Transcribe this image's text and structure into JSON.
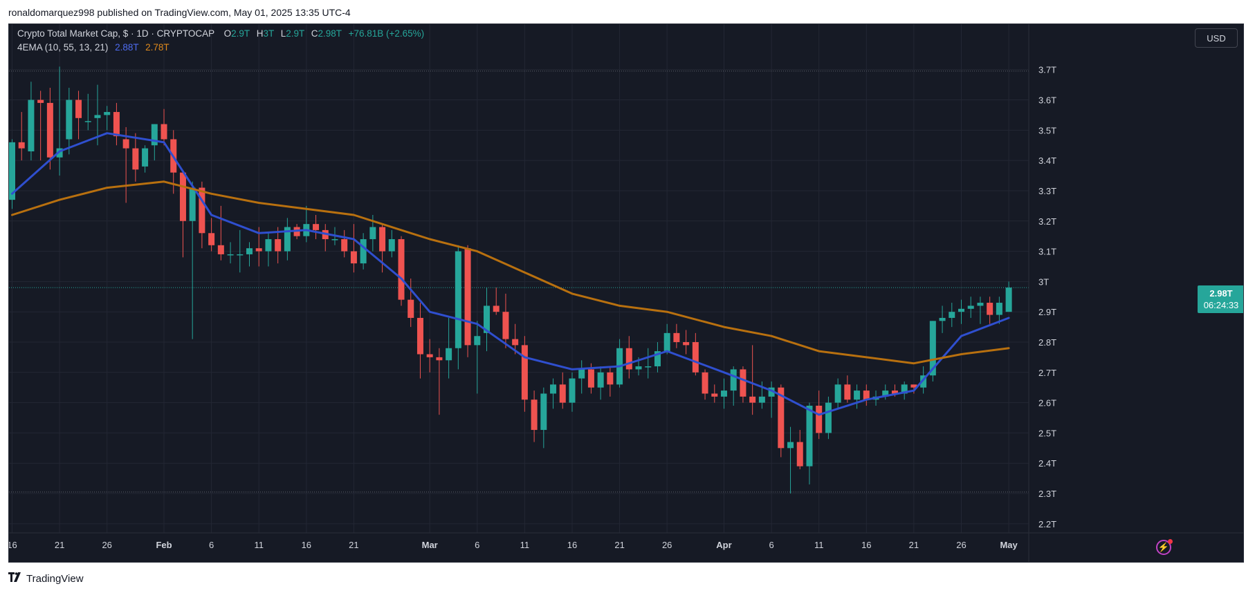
{
  "header": {
    "publisher_line": "ronaldomarquez998 published on TradingView.com, May 01, 2025 13:35 UTC-4"
  },
  "legend": {
    "symbol": "Crypto Total Market Cap, $ · 1D · CRYPTOCAP",
    "o_label": "O",
    "o_value": "2.9T",
    "h_label": "H",
    "h_value": "3T",
    "l_label": "L",
    "l_value": "2.9T",
    "c_label": "C",
    "c_value": "2.98T",
    "change": "+76.81B (+2.65%)",
    "indicator": "4EMA (10, 55, 13, 21)",
    "ema_fast": "2.88T",
    "ema_slow": "2.78T"
  },
  "price_axis": {
    "currency": "USD"
  },
  "price_tag": {
    "price": "2.98T",
    "countdown": "06:24:33"
  },
  "footer": {
    "brand": "TradingView"
  },
  "icons": {
    "alert": "lightning-icon",
    "logo": "tradingview-logo-icon"
  },
  "colors": {
    "background": "#161a25",
    "up": "#26a69a",
    "down": "#ef5350",
    "ema_fast": "#2f4fcf",
    "ema_slow": "#b8700f",
    "text": "#d1d4dc"
  },
  "chart_data": {
    "type": "candlestick",
    "title": "Crypto Total Market Cap, $ · 1D · CRYPTOCAP",
    "ylabel": "",
    "ylim": [
      2.17,
      3.85
    ],
    "y_ticks": [
      "3.7T",
      "3.6T",
      "3.5T",
      "3.4T",
      "3.3T",
      "3.2T",
      "3.1T",
      "3T",
      "2.9T",
      "2.8T",
      "2.7T",
      "2.6T",
      "2.5T",
      "2.4T",
      "2.3T",
      "2.2T"
    ],
    "y_tick_values": [
      3.7,
      3.6,
      3.5,
      3.4,
      3.3,
      3.2,
      3.1,
      3.0,
      2.9,
      2.8,
      2.7,
      2.6,
      2.5,
      2.4,
      2.3,
      2.2
    ],
    "x_ticks": [
      {
        "label": "16",
        "date": "2025-01-16"
      },
      {
        "label": "21",
        "date": "2025-01-21"
      },
      {
        "label": "26",
        "date": "2025-01-26"
      },
      {
        "label": "Feb",
        "date": "2025-02-01",
        "bold": true
      },
      {
        "label": "6",
        "date": "2025-02-06"
      },
      {
        "label": "11",
        "date": "2025-02-11"
      },
      {
        "label": "16",
        "date": "2025-02-16"
      },
      {
        "label": "21",
        "date": "2025-02-21"
      },
      {
        "label": "Mar",
        "date": "2025-03-01",
        "bold": true
      },
      {
        "label": "6",
        "date": "2025-03-06"
      },
      {
        "label": "11",
        "date": "2025-03-11"
      },
      {
        "label": "16",
        "date": "2025-03-16"
      },
      {
        "label": "21",
        "date": "2025-03-21"
      },
      {
        "label": "26",
        "date": "2025-03-26"
      },
      {
        "label": "Apr",
        "date": "2025-04-01",
        "bold": true
      },
      {
        "label": "6",
        "date": "2025-04-06"
      },
      {
        "label": "11",
        "date": "2025-04-11"
      },
      {
        "label": "16",
        "date": "2025-04-16"
      },
      {
        "label": "21",
        "date": "2025-04-21"
      },
      {
        "label": "26",
        "date": "2025-04-26"
      },
      {
        "label": "May",
        "date": "2025-05-01",
        "bold": true
      }
    ],
    "x_start": "2025-01-16",
    "dotted_levels": [
      3.695,
      2.305
    ],
    "current_price": 2.98,
    "candles": [
      {
        "date": "2025-01-16",
        "o": 3.27,
        "h": 3.47,
        "l": 3.24,
        "c": 3.46
      },
      {
        "date": "2025-01-17",
        "o": 3.46,
        "h": 3.56,
        "l": 3.4,
        "c": 3.44
      },
      {
        "date": "2025-01-18",
        "o": 3.43,
        "h": 3.66,
        "l": 3.4,
        "c": 3.6
      },
      {
        "date": "2025-01-19",
        "o": 3.6,
        "h": 3.63,
        "l": 3.4,
        "c": 3.59
      },
      {
        "date": "2025-01-20",
        "o": 3.59,
        "h": 3.64,
        "l": 3.37,
        "c": 3.41
      },
      {
        "date": "2025-01-21",
        "o": 3.41,
        "h": 3.71,
        "l": 3.35,
        "c": 3.44
      },
      {
        "date": "2025-01-22",
        "o": 3.47,
        "h": 3.64,
        "l": 3.42,
        "c": 3.6
      },
      {
        "date": "2025-01-23",
        "o": 3.6,
        "h": 3.63,
        "l": 3.47,
        "c": 3.54
      },
      {
        "date": "2025-01-24",
        "o": 3.53,
        "h": 3.62,
        "l": 3.5,
        "c": 3.53
      },
      {
        "date": "2025-01-25",
        "o": 3.54,
        "h": 3.65,
        "l": 3.45,
        "c": 3.55
      },
      {
        "date": "2025-01-26",
        "o": 3.55,
        "h": 3.58,
        "l": 3.5,
        "c": 3.56
      },
      {
        "date": "2025-01-27",
        "o": 3.56,
        "h": 3.59,
        "l": 3.45,
        "c": 3.48
      },
      {
        "date": "2025-01-28",
        "o": 3.47,
        "h": 3.51,
        "l": 3.26,
        "c": 3.44
      },
      {
        "date": "2025-01-29",
        "o": 3.44,
        "h": 3.49,
        "l": 3.33,
        "c": 3.37
      },
      {
        "date": "2025-01-30",
        "o": 3.38,
        "h": 3.45,
        "l": 3.36,
        "c": 3.44
      },
      {
        "date": "2025-01-31",
        "o": 3.45,
        "h": 3.52,
        "l": 3.4,
        "c": 3.52
      },
      {
        "date": "2025-02-01",
        "o": 3.52,
        "h": 3.57,
        "l": 3.45,
        "c": 3.47
      },
      {
        "date": "2025-02-02",
        "o": 3.47,
        "h": 3.5,
        "l": 3.29,
        "c": 3.36
      },
      {
        "date": "2025-02-03",
        "o": 3.36,
        "h": 3.36,
        "l": 3.08,
        "c": 3.2
      },
      {
        "date": "2025-02-04",
        "o": 3.2,
        "h": 3.33,
        "l": 2.81,
        "c": 3.31
      },
      {
        "date": "2025-02-05",
        "o": 3.31,
        "h": 3.33,
        "l": 3.11,
        "c": 3.16
      },
      {
        "date": "2025-02-06",
        "o": 3.16,
        "h": 3.21,
        "l": 3.1,
        "c": 3.12
      },
      {
        "date": "2025-02-07",
        "o": 3.12,
        "h": 3.25,
        "l": 3.07,
        "c": 3.09
      },
      {
        "date": "2025-02-08",
        "o": 3.09,
        "h": 3.13,
        "l": 3.06,
        "c": 3.09
      },
      {
        "date": "2025-02-09",
        "o": 3.09,
        "h": 3.17,
        "l": 3.03,
        "c": 3.09
      },
      {
        "date": "2025-02-10",
        "o": 3.09,
        "h": 3.13,
        "l": 3.05,
        "c": 3.11
      },
      {
        "date": "2025-02-11",
        "o": 3.11,
        "h": 3.18,
        "l": 3.05,
        "c": 3.1
      },
      {
        "date": "2025-02-12",
        "o": 3.1,
        "h": 3.16,
        "l": 3.05,
        "c": 3.14
      },
      {
        "date": "2025-02-13",
        "o": 3.14,
        "h": 3.18,
        "l": 3.06,
        "c": 3.1
      },
      {
        "date": "2025-02-14",
        "o": 3.1,
        "h": 3.21,
        "l": 3.07,
        "c": 3.18
      },
      {
        "date": "2025-02-15",
        "o": 3.18,
        "h": 3.19,
        "l": 3.14,
        "c": 3.15
      },
      {
        "date": "2025-02-16",
        "o": 3.15,
        "h": 3.25,
        "l": 3.13,
        "c": 3.19
      },
      {
        "date": "2025-02-17",
        "o": 3.19,
        "h": 3.22,
        "l": 3.14,
        "c": 3.17
      },
      {
        "date": "2025-02-18",
        "o": 3.17,
        "h": 3.19,
        "l": 3.1,
        "c": 3.14
      },
      {
        "date": "2025-02-19",
        "o": 3.14,
        "h": 3.18,
        "l": 3.12,
        "c": 3.14
      },
      {
        "date": "2025-02-20",
        "o": 3.14,
        "h": 3.17,
        "l": 3.08,
        "c": 3.1
      },
      {
        "date": "2025-02-21",
        "o": 3.1,
        "h": 3.19,
        "l": 3.03,
        "c": 3.06
      },
      {
        "date": "2025-02-22",
        "o": 3.06,
        "h": 3.16,
        "l": 3.04,
        "c": 3.14
      },
      {
        "date": "2025-02-23",
        "o": 3.14,
        "h": 3.22,
        "l": 3.1,
        "c": 3.18
      },
      {
        "date": "2025-02-24",
        "o": 3.18,
        "h": 3.19,
        "l": 3.03,
        "c": 3.1
      },
      {
        "date": "2025-02-25",
        "o": 3.1,
        "h": 3.17,
        "l": 3.08,
        "c": 3.14
      },
      {
        "date": "2025-02-26",
        "o": 3.14,
        "h": 3.15,
        "l": 2.92,
        "c": 2.94
      },
      {
        "date": "2025-02-27",
        "o": 2.94,
        "h": 3.01,
        "l": 2.85,
        "c": 2.88
      },
      {
        "date": "2025-02-28",
        "o": 2.88,
        "h": 2.93,
        "l": 2.68,
        "c": 2.76
      },
      {
        "date": "2025-03-01",
        "o": 2.76,
        "h": 2.81,
        "l": 2.7,
        "c": 2.75
      },
      {
        "date": "2025-03-02",
        "o": 2.75,
        "h": 2.78,
        "l": 2.56,
        "c": 2.74
      },
      {
        "date": "2025-03-03",
        "o": 2.74,
        "h": 2.88,
        "l": 2.68,
        "c": 2.78
      },
      {
        "date": "2025-03-04",
        "o": 2.78,
        "h": 3.12,
        "l": 2.71,
        "c": 3.1
      },
      {
        "date": "2025-03-05",
        "o": 3.11,
        "h": 3.12,
        "l": 2.75,
        "c": 2.79
      },
      {
        "date": "2025-03-06",
        "o": 2.79,
        "h": 2.87,
        "l": 2.63,
        "c": 2.82
      },
      {
        "date": "2025-03-07",
        "o": 2.83,
        "h": 2.98,
        "l": 2.77,
        "c": 2.92
      },
      {
        "date": "2025-03-08",
        "o": 2.92,
        "h": 2.98,
        "l": 2.89,
        "c": 2.9
      },
      {
        "date": "2025-03-09",
        "o": 2.9,
        "h": 2.96,
        "l": 2.78,
        "c": 2.81
      },
      {
        "date": "2025-03-10",
        "o": 2.81,
        "h": 2.86,
        "l": 2.76,
        "c": 2.79
      },
      {
        "date": "2025-03-11",
        "o": 2.79,
        "h": 2.82,
        "l": 2.57,
        "c": 2.61
      },
      {
        "date": "2025-03-12",
        "o": 2.61,
        "h": 2.64,
        "l": 2.47,
        "c": 2.51
      },
      {
        "date": "2025-03-13",
        "o": 2.51,
        "h": 2.65,
        "l": 2.45,
        "c": 2.63
      },
      {
        "date": "2025-03-14",
        "o": 2.63,
        "h": 2.68,
        "l": 2.58,
        "c": 2.66
      },
      {
        "date": "2025-03-15",
        "o": 2.66,
        "h": 2.7,
        "l": 2.58,
        "c": 2.6
      },
      {
        "date": "2025-03-16",
        "o": 2.6,
        "h": 2.7,
        "l": 2.57,
        "c": 2.68
      },
      {
        "date": "2025-03-17",
        "o": 2.68,
        "h": 2.74,
        "l": 2.63,
        "c": 2.71
      },
      {
        "date": "2025-03-18",
        "o": 2.71,
        "h": 2.73,
        "l": 2.63,
        "c": 2.65
      },
      {
        "date": "2025-03-19",
        "o": 2.65,
        "h": 2.72,
        "l": 2.61,
        "c": 2.7
      },
      {
        "date": "2025-03-20",
        "o": 2.7,
        "h": 2.72,
        "l": 2.62,
        "c": 2.66
      },
      {
        "date": "2025-03-21",
        "o": 2.66,
        "h": 2.81,
        "l": 2.65,
        "c": 2.78
      },
      {
        "date": "2025-03-22",
        "o": 2.78,
        "h": 2.82,
        "l": 2.68,
        "c": 2.71
      },
      {
        "date": "2025-03-23",
        "o": 2.71,
        "h": 2.75,
        "l": 2.69,
        "c": 2.72
      },
      {
        "date": "2025-03-24",
        "o": 2.72,
        "h": 2.78,
        "l": 2.68,
        "c": 2.72
      },
      {
        "date": "2025-03-25",
        "o": 2.72,
        "h": 2.8,
        "l": 2.7,
        "c": 2.77
      },
      {
        "date": "2025-03-26",
        "o": 2.77,
        "h": 2.86,
        "l": 2.76,
        "c": 2.83
      },
      {
        "date": "2025-03-27",
        "o": 2.83,
        "h": 2.86,
        "l": 2.78,
        "c": 2.8
      },
      {
        "date": "2025-03-28",
        "o": 2.8,
        "h": 2.84,
        "l": 2.76,
        "c": 2.79
      },
      {
        "date": "2025-03-29",
        "o": 2.8,
        "h": 2.83,
        "l": 2.69,
        "c": 2.7
      },
      {
        "date": "2025-03-30",
        "o": 2.7,
        "h": 2.71,
        "l": 2.61,
        "c": 2.63
      },
      {
        "date": "2025-03-31",
        "o": 2.63,
        "h": 2.66,
        "l": 2.6,
        "c": 2.62
      },
      {
        "date": "2025-04-01",
        "o": 2.62,
        "h": 2.68,
        "l": 2.58,
        "c": 2.64
      },
      {
        "date": "2025-04-02",
        "o": 2.64,
        "h": 2.72,
        "l": 2.59,
        "c": 2.71
      },
      {
        "date": "2025-04-03",
        "o": 2.71,
        "h": 2.72,
        "l": 2.6,
        "c": 2.62
      },
      {
        "date": "2025-04-04",
        "o": 2.62,
        "h": 2.79,
        "l": 2.56,
        "c": 2.6
      },
      {
        "date": "2025-04-05",
        "o": 2.6,
        "h": 2.67,
        "l": 2.58,
        "c": 2.62
      },
      {
        "date": "2025-04-06",
        "o": 2.62,
        "h": 2.67,
        "l": 2.55,
        "c": 2.65
      },
      {
        "date": "2025-04-07",
        "o": 2.65,
        "h": 2.66,
        "l": 2.42,
        "c": 2.45
      },
      {
        "date": "2025-04-08",
        "o": 2.45,
        "h": 2.52,
        "l": 2.3,
        "c": 2.47
      },
      {
        "date": "2025-04-09",
        "o": 2.47,
        "h": 2.51,
        "l": 2.38,
        "c": 2.39
      },
      {
        "date": "2025-04-10",
        "o": 2.39,
        "h": 2.6,
        "l": 2.33,
        "c": 2.59
      },
      {
        "date": "2025-04-11",
        "o": 2.59,
        "h": 2.64,
        "l": 2.48,
        "c": 2.5
      },
      {
        "date": "2025-04-12",
        "o": 2.5,
        "h": 2.62,
        "l": 2.48,
        "c": 2.6
      },
      {
        "date": "2025-04-13",
        "o": 2.6,
        "h": 2.68,
        "l": 2.58,
        "c": 2.66
      },
      {
        "date": "2025-04-14",
        "o": 2.66,
        "h": 2.69,
        "l": 2.6,
        "c": 2.61
      },
      {
        "date": "2025-04-15",
        "o": 2.61,
        "h": 2.66,
        "l": 2.58,
        "c": 2.64
      },
      {
        "date": "2025-04-16",
        "o": 2.64,
        "h": 2.66,
        "l": 2.59,
        "c": 2.61
      },
      {
        "date": "2025-04-17",
        "o": 2.61,
        "h": 2.64,
        "l": 2.59,
        "c": 2.62
      },
      {
        "date": "2025-04-18",
        "o": 2.62,
        "h": 2.66,
        "l": 2.61,
        "c": 2.64
      },
      {
        "date": "2025-04-19",
        "o": 2.64,
        "h": 2.66,
        "l": 2.62,
        "c": 2.63
      },
      {
        "date": "2025-04-20",
        "o": 2.63,
        "h": 2.67,
        "l": 2.61,
        "c": 2.66
      },
      {
        "date": "2025-04-21",
        "o": 2.66,
        "h": 2.66,
        "l": 2.63,
        "c": 2.65
      },
      {
        "date": "2025-04-22",
        "o": 2.65,
        "h": 2.72,
        "l": 2.63,
        "c": 2.69
      },
      {
        "date": "2025-04-23",
        "o": 2.69,
        "h": 2.87,
        "l": 2.67,
        "c": 2.87
      },
      {
        "date": "2025-04-24",
        "o": 2.87,
        "h": 2.92,
        "l": 2.83,
        "c": 2.88
      },
      {
        "date": "2025-04-25",
        "o": 2.88,
        "h": 2.93,
        "l": 2.85,
        "c": 2.9
      },
      {
        "date": "2025-04-26",
        "o": 2.9,
        "h": 2.94,
        "l": 2.86,
        "c": 2.91
      },
      {
        "date": "2025-04-27",
        "o": 2.91,
        "h": 2.95,
        "l": 2.88,
        "c": 2.92
      },
      {
        "date": "2025-04-28",
        "o": 2.92,
        "h": 2.95,
        "l": 2.86,
        "c": 2.93
      },
      {
        "date": "2025-04-29",
        "o": 2.93,
        "h": 2.95,
        "l": 2.86,
        "c": 2.89
      },
      {
        "date": "2025-04-30",
        "o": 2.89,
        "h": 2.95,
        "l": 2.86,
        "c": 2.93
      },
      {
        "date": "2025-05-01",
        "o": 2.9,
        "h": 3.0,
        "l": 2.9,
        "c": 2.98
      }
    ],
    "series": [
      {
        "name": "EMA 10",
        "color": "#2f4fcf",
        "dates": [
          "2025-01-16",
          "2025-01-21",
          "2025-01-26",
          "2025-02-01",
          "2025-02-06",
          "2025-02-11",
          "2025-02-16",
          "2025-02-21",
          "2025-02-26",
          "2025-03-01",
          "2025-03-06",
          "2025-03-11",
          "2025-03-16",
          "2025-03-21",
          "2025-03-26",
          "2025-04-01",
          "2025-04-06",
          "2025-04-11",
          "2025-04-16",
          "2025-04-21",
          "2025-04-26",
          "2025-05-01"
        ],
        "values": [
          3.29,
          3.43,
          3.49,
          3.46,
          3.22,
          3.16,
          3.17,
          3.14,
          3.01,
          2.9,
          2.86,
          2.75,
          2.71,
          2.72,
          2.77,
          2.7,
          2.64,
          2.56,
          2.61,
          2.64,
          2.82,
          2.88
        ]
      },
      {
        "name": "EMA 55",
        "color": "#b8700f",
        "dates": [
          "2025-01-16",
          "2025-01-21",
          "2025-01-26",
          "2025-02-01",
          "2025-02-06",
          "2025-02-11",
          "2025-02-16",
          "2025-02-21",
          "2025-02-26",
          "2025-03-01",
          "2025-03-06",
          "2025-03-11",
          "2025-03-16",
          "2025-03-21",
          "2025-03-26",
          "2025-04-01",
          "2025-04-06",
          "2025-04-11",
          "2025-04-16",
          "2025-04-21",
          "2025-04-26",
          "2025-05-01"
        ],
        "values": [
          3.22,
          3.27,
          3.31,
          3.33,
          3.29,
          3.26,
          3.24,
          3.22,
          3.17,
          3.14,
          3.1,
          3.03,
          2.96,
          2.92,
          2.9,
          2.85,
          2.82,
          2.77,
          2.75,
          2.73,
          2.76,
          2.78
        ]
      }
    ]
  }
}
